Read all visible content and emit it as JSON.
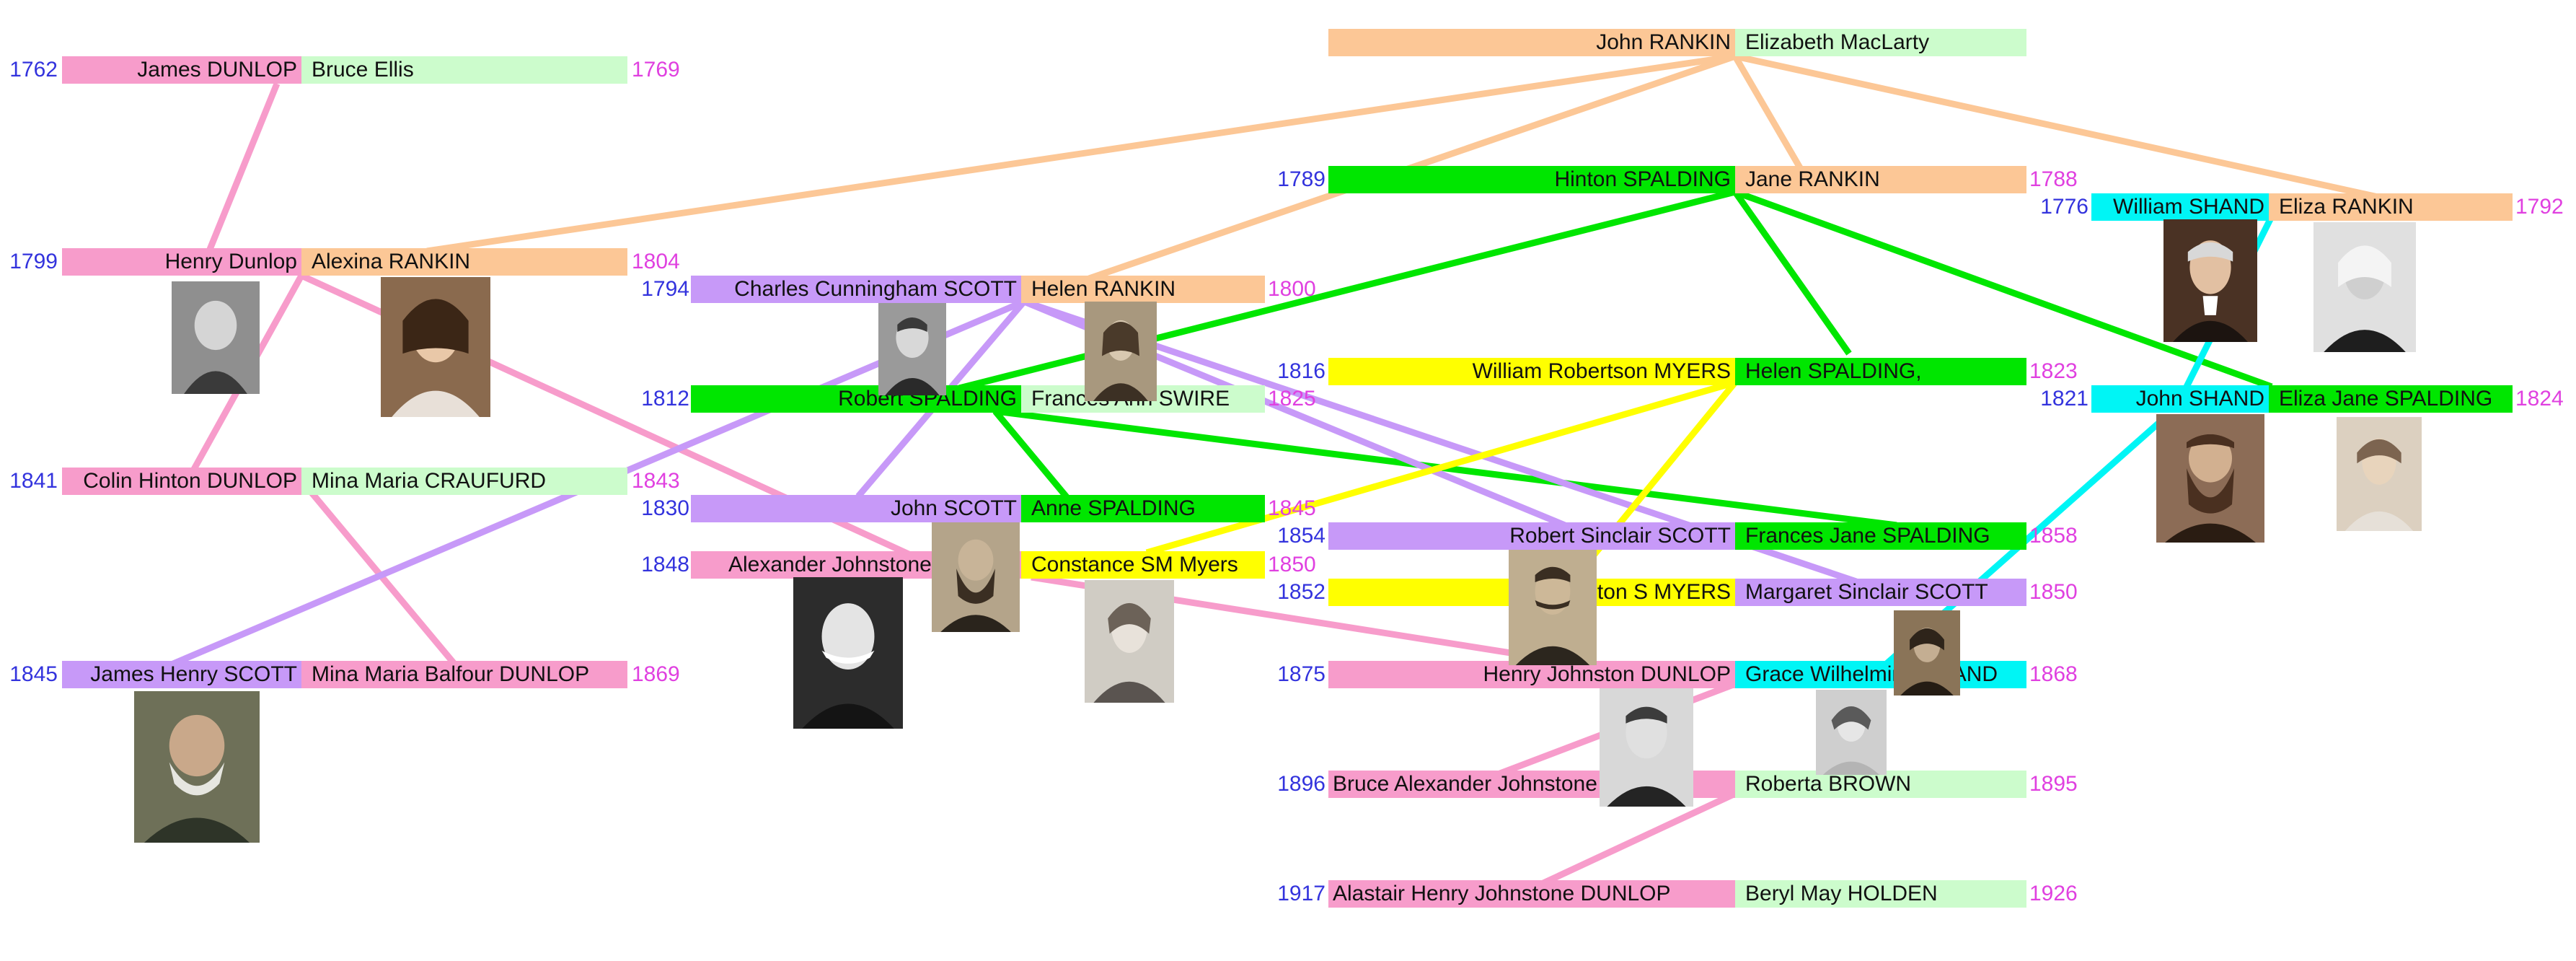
{
  "palette": {
    "pink": "#f79ccb",
    "peach": "#fcc796",
    "lightgreen": "#ccfccc",
    "green": "#00e600",
    "purple": "#c799f8",
    "yellow": "#ffff00",
    "cyan": "#00f5f5",
    "year_left": "#3333dd",
    "year_right": "#e040e0"
  },
  "people": {
    "james_dunlop": "James DUNLOP",
    "bruce_ellis": "Bruce Ellis",
    "henry_dunlop": "Henry Dunlop",
    "alexina_rankin": "Alexina RANKIN",
    "colin_hinton_dunlop": "Colin Hinton DUNLOP",
    "mina_maria_craufurd": "Mina Maria CRAUFURD",
    "james_henry_scott": "James Henry SCOTT",
    "mina_maria_balfour_dunlop": "Mina Maria Balfour DUNLOP",
    "charles_cunningham_scott": "Charles Cunningham SCOTT",
    "helen_rankin": "Helen RANKIN",
    "robert_spalding": "Robert SPALDING",
    "frances_ann_swire": "Frances Ann SWIRE",
    "john_scott": "John SCOTT",
    "anne_spalding": "Anne SPALDING",
    "alexander_johnstone": "Alexander Johnstone",
    "constance_sm_myers": "Constance SM Myers",
    "john_rankin": "John RANKIN",
    "elizabeth_maclarty": "Elizabeth MacLarty",
    "hinton_spalding": "Hinton SPALDING",
    "jane_rankin": "Jane RANKIN",
    "william_robertson_myers": "William Robertson MYERS",
    "helen_spalding": "Helen SPALDING,",
    "robert_sinclair_scott": "Robert Sinclair SCOTT",
    "frances_jane_spalding": "Frances Jane SPALDING",
    "hinton_s_myers": "Hinton S MYERS",
    "margaret_sinclair_scott": "Margaret Sinclair SCOTT",
    "henry_johnston_dunlop": "Henry Johnston  DUNLOP",
    "grace_wilhelmina_shand": "Grace Wilhelmina SHAND",
    "bruce_alexander_johnstone": "Bruce Alexander Johnstone",
    "roberta_brown": "Roberta BROWN",
    "alastair_henry_johnstone_dunlop": "Alastair Henry Johnstone DUNLOP",
    "beryl_may_holden": "Beryl May HOLDEN",
    "william_shand": "William SHAND",
    "eliza_rankin": "Eliza RANKIN",
    "john_shand": "John SHAND",
    "eliza_jane_spalding": "Eliza Jane SPALDING"
  },
  "years": {
    "y1762": "1762",
    "y1769": "1769",
    "y1799": "1799",
    "y1804": "1804",
    "y1841": "1841",
    "y1843": "1843",
    "y1845": "1845",
    "y1869": "1869",
    "y1794": "1794",
    "y1800": "1800",
    "y1812": "1812",
    "y1825": "1825",
    "y1830": "1830",
    "y1845b": "1845",
    "y1848": "1848",
    "y1850": "1850",
    "y1789": "1789",
    "y1788": "1788",
    "y1816": "1816",
    "y1823": "1823",
    "y1854": "1854",
    "y1858": "1858",
    "y1852": "1852",
    "y1850b": "1850",
    "y1875": "1875",
    "y1868": "1868",
    "y1896": "1896",
    "y1895": "1895",
    "y1917": "1917",
    "y1926": "1926",
    "y1776": "1776",
    "y1792": "1792",
    "y1821": "1821",
    "y1824": "1824"
  }
}
